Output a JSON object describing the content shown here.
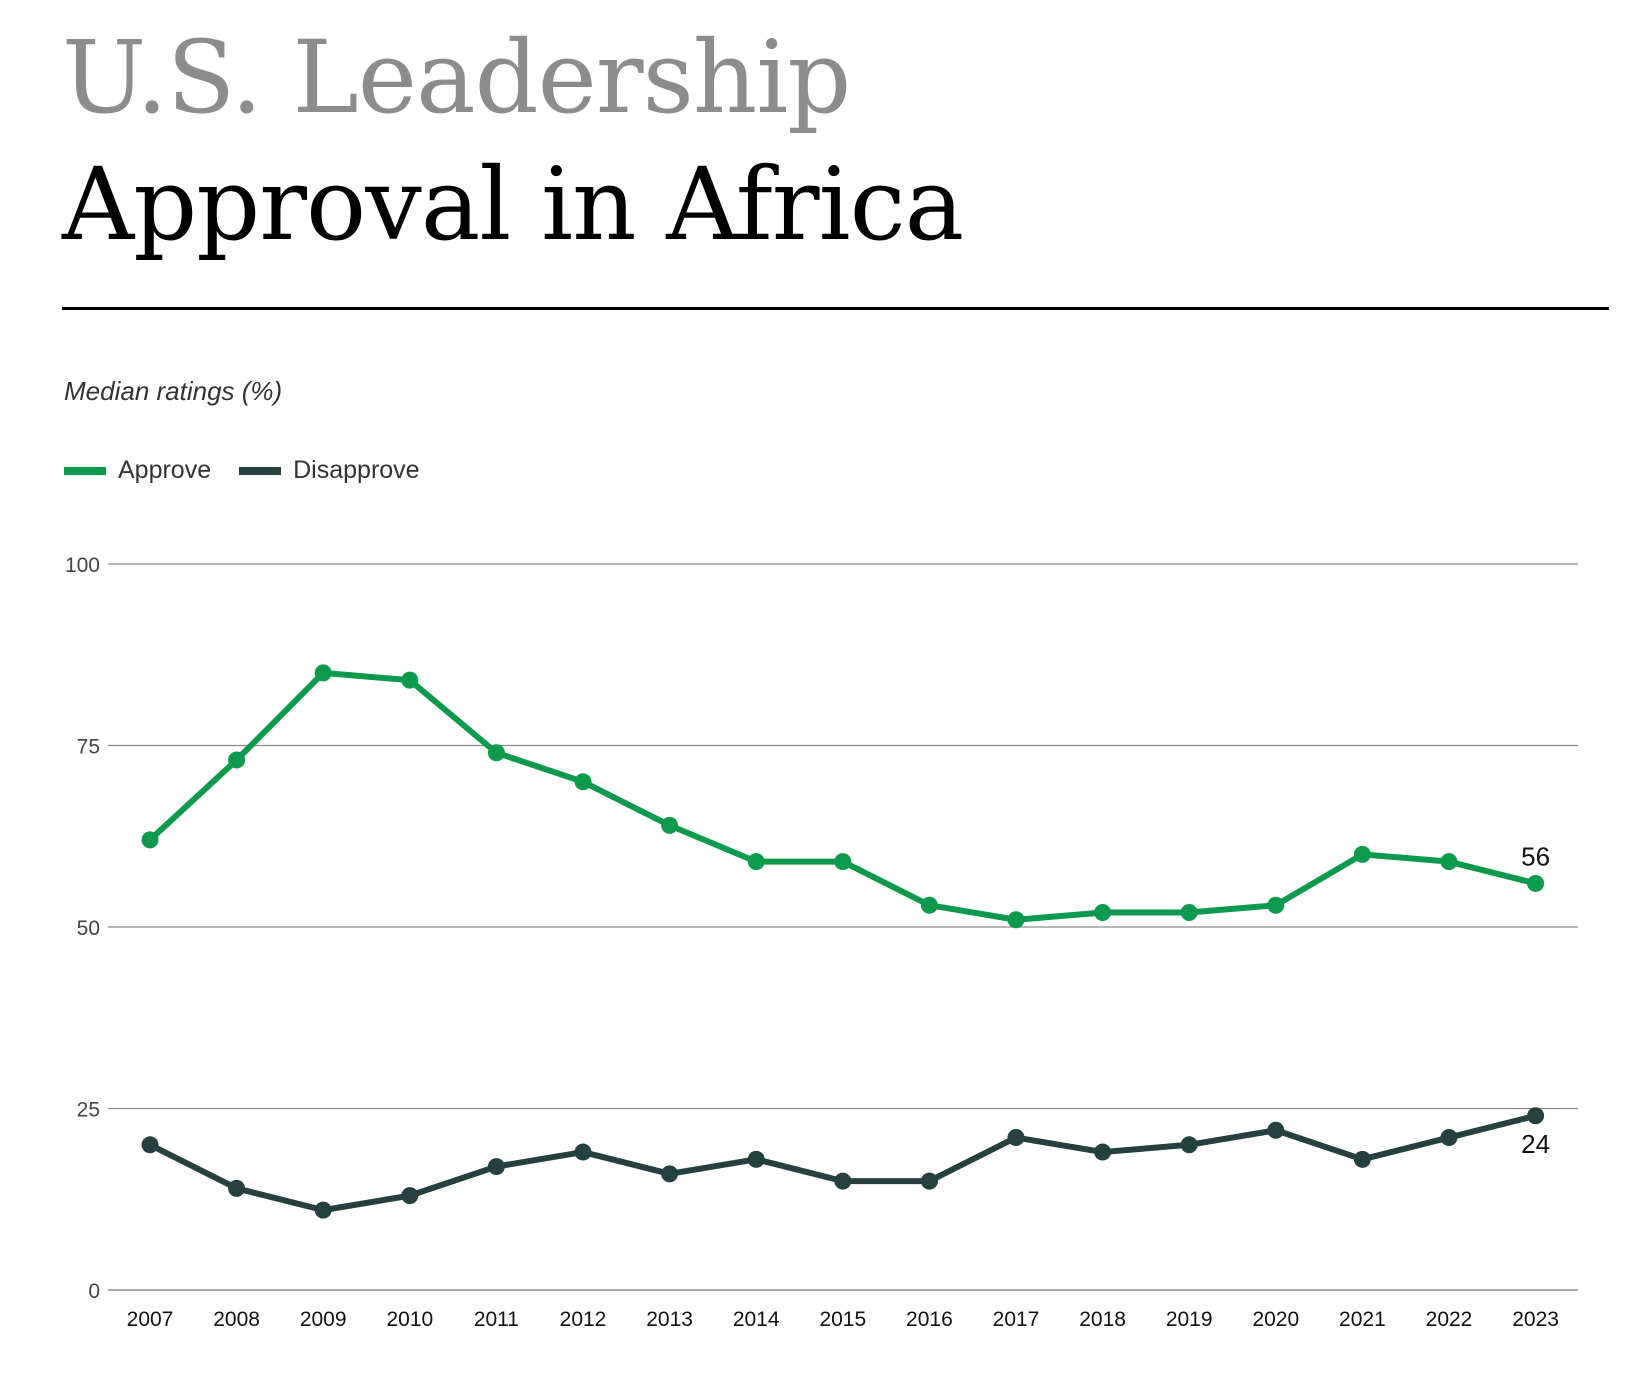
{
  "heading": {
    "line1": "U.S. Leadership",
    "line2": "Approval in Africa"
  },
  "subtitle": "Median ratings (%)",
  "legend": [
    {
      "label": "Approve",
      "color": "#0e9a4c"
    },
    {
      "label": "Disapprove",
      "color": "#24403f"
    }
  ],
  "chart_data": {
    "type": "line",
    "x": [
      "2007",
      "2008",
      "2009",
      "2010",
      "2011",
      "2012",
      "2013",
      "2014",
      "2015",
      "2016",
      "2017",
      "2018",
      "2019",
      "2020",
      "2021",
      "2022",
      "2023"
    ],
    "series": [
      {
        "name": "Approve",
        "color": "#0e9a4c",
        "values": [
          62,
          73,
          85,
          84,
          74,
          70,
          64,
          59,
          59,
          53,
          51,
          52,
          52,
          53,
          60,
          59,
          56
        ]
      },
      {
        "name": "Disapprove",
        "color": "#24403f",
        "values": [
          20,
          14,
          11,
          13,
          17,
          19,
          16,
          18,
          15,
          15,
          21,
          19,
          20,
          22,
          18,
          21,
          24
        ]
      }
    ],
    "ylim": [
      0,
      100
    ],
    "yticks": [
      0,
      25,
      50,
      75,
      100
    ],
    "end_labels": [
      "56",
      "24"
    ],
    "grid": true,
    "legend_position": "top-left"
  }
}
